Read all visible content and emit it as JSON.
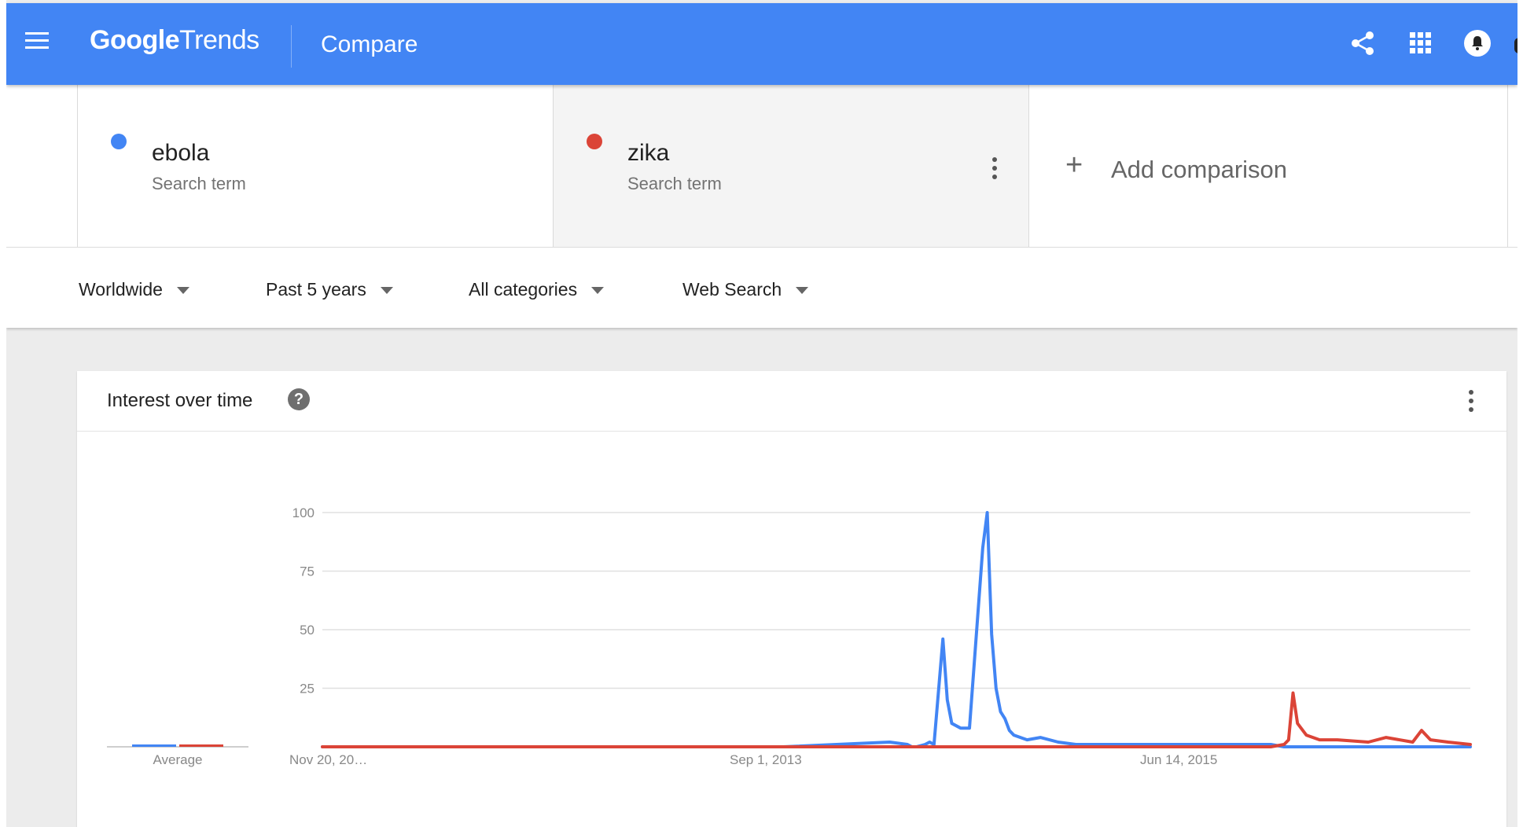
{
  "header": {
    "logo_google": "Google",
    "logo_trends": "Trends",
    "title": "Compare",
    "icons": [
      "menu-icon",
      "share-icon",
      "apps-icon",
      "bell-icon"
    ]
  },
  "terms": [
    {
      "name": "ebola",
      "type": "Search term",
      "color": "#4285f4"
    },
    {
      "name": "zika",
      "type": "Search term",
      "color": "#db4437"
    }
  ],
  "add_comparison": {
    "plus": "+",
    "label": "Add comparison"
  },
  "filters": {
    "region": "Worldwide",
    "time": "Past 5 years",
    "category": "All categories",
    "search_type": "Web Search"
  },
  "card": {
    "title": "Interest over time",
    "help": "?"
  },
  "chart_data": {
    "type": "line",
    "y_ticks": [
      "100",
      "75",
      "50",
      "25"
    ],
    "ylim": [
      0,
      100
    ],
    "x_labels": [
      "Nov 20, 20…",
      "Sep 1, 2013",
      "Jun 14, 2015"
    ],
    "average_label": "Average",
    "x": [
      "2011-11-20",
      "2012-05-13",
      "2012-11-18",
      "2013-05-12",
      "2013-11-17",
      "2014-05-04",
      "2014-06-01",
      "2014-06-08",
      "2014-06-15",
      "2014-06-29",
      "2014-07-06",
      "2014-07-13",
      "2014-07-27",
      "2014-08-03",
      "2014-08-10",
      "2014-08-24",
      "2014-09-07",
      "2014-09-28",
      "2014-10-05",
      "2014-10-12",
      "2014-10-19",
      "2014-10-26",
      "2014-11-02",
      "2014-11-09",
      "2014-11-16",
      "2014-12-07",
      "2014-12-28",
      "2015-01-25",
      "2015-02-22",
      "2015-06-14",
      "2015-12-27",
      "2016-01-17",
      "2016-01-24",
      "2016-01-31",
      "2016-02-07",
      "2016-02-21",
      "2016-03-13",
      "2016-04-10",
      "2016-05-29",
      "2016-06-26",
      "2016-08-07",
      "2016-08-21",
      "2016-09-04",
      "2016-10-02",
      "2016-11-06"
    ],
    "series": [
      {
        "name": "ebola",
        "color": "#4285f4",
        "average": 1,
        "values": [
          0,
          0,
          0,
          0,
          0,
          2,
          1,
          0,
          0,
          1,
          2,
          1,
          46,
          20,
          10,
          8,
          8,
          85,
          100,
          48,
          25,
          15,
          12,
          7,
          5,
          3,
          4,
          2,
          1,
          1,
          1,
          0,
          0,
          0,
          0,
          0,
          0,
          0,
          0,
          0,
          0,
          0,
          0,
          0,
          0
        ]
      },
      {
        "name": "zika",
        "color": "#db4437",
        "average": 0,
        "values": [
          0,
          0,
          0,
          0,
          0,
          0,
          0,
          0,
          0,
          0,
          0,
          0,
          0,
          0,
          0,
          0,
          0,
          0,
          0,
          0,
          0,
          0,
          0,
          0,
          0,
          0,
          0,
          0,
          0,
          0,
          0,
          1,
          3,
          23,
          10,
          5,
          3,
          3,
          2,
          4,
          2,
          7,
          3,
          2,
          1
        ]
      }
    ]
  }
}
